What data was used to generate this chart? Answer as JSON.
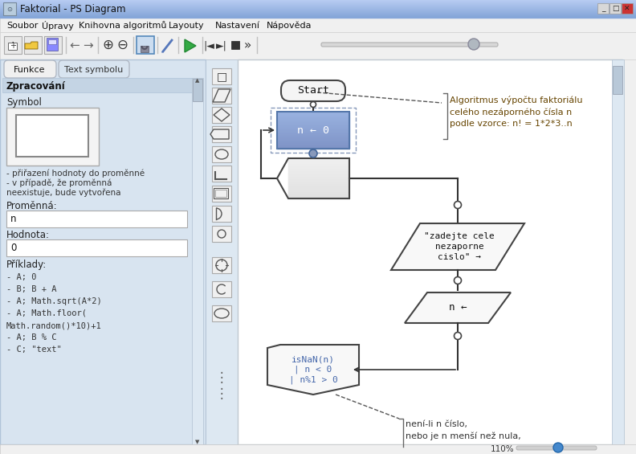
{
  "title": "Faktorial - PS Diagram",
  "menu_items": [
    "Soubor",
    "Úpravy",
    "Knihovna algoritmů",
    "Layouty",
    "Nastavení",
    "Nápověda"
  ],
  "tab1": "Funkce",
  "tab2": "Text symbolu",
  "section_title": "Zpracování",
  "symbol_label": "Symbol",
  "desc_line1": "- přiřazení hodnoty do proměnné",
  "desc_line2": "- v případě, že proměnná",
  "desc_line3": "neexistuje, bude vytvořena",
  "promenna_label": "Proměnná:",
  "promenna_value": "n",
  "hodnota_label": "Hodnota:",
  "hodnota_value": "0",
  "priklady_label": "Příklady:",
  "priklady_lines": [
    "- A; 0",
    "- B; B + A",
    "- A; Math.sqrt(A*2)",
    "- A; Math.floor(",
    "Math.random()*10)+1",
    "- A; B % C",
    "- C; \"text\""
  ],
  "annotation1": "Algoritmus výpočtu faktoriálu\ncelého nezáporného čísla n\npodle vzorce: n! = 1*2*3..n",
  "annotation2": "není-li n číslo,\nnebo je n menší než nula,",
  "node_start": "Start",
  "node_assign": "n ← 0",
  "node_output": "\"zadejte cele\nnezaporne\ncislo\" →",
  "node_input": "n ←",
  "node_condition": "isNaN(n)\n| n < 0\n| n%1 > 0",
  "zoom_label": "110%",
  "titlebar_color": "#6baad8",
  "titlebar_gradient_top": "#9dc4e8",
  "menu_bg": "#f0f0f0",
  "toolbar_bg": "#f0f0f0",
  "left_panel_bg": "#d8e4f0",
  "left_panel_border": "#b0c4d8",
  "icon_strip_bg": "#dde8f2",
  "canvas_bg": "#ffffff",
  "scrollbar_bg": "#e8eef5",
  "scrollbar_thumb": "#c0ccd8",
  "statusbar_bg": "#f0f0f0",
  "node_assign_fill_top": "#8aabe0",
  "node_assign_fill_bot": "#6688bb",
  "node_assign_border": "#5577aa",
  "node_stroke": "#444444",
  "node_white_fill": "#f8f8f8",
  "node_light_fill": "#eeeeee",
  "conn_dot_fill": "#8899bb",
  "conn_dot_open": "#ffffff",
  "annot1_color": "#664400",
  "annot2_color": "#333333",
  "blue_text": "#4466aa",
  "tab_active_bg": "#f0f0f0",
  "tab_inactive_bg": "#d8e4f0",
  "field_bg": "#ffffff",
  "field_border": "#aaaaaa",
  "section_bg": "#c4d4e4",
  "dashed_select": "#8899bb",
  "window_btn_min": "#e0e0e0",
  "window_btn_max": "#e0e0e0",
  "window_btn_close": "#cc3333",
  "slider_track": "#c0c0c0",
  "slider_thumb": "#4488cc"
}
